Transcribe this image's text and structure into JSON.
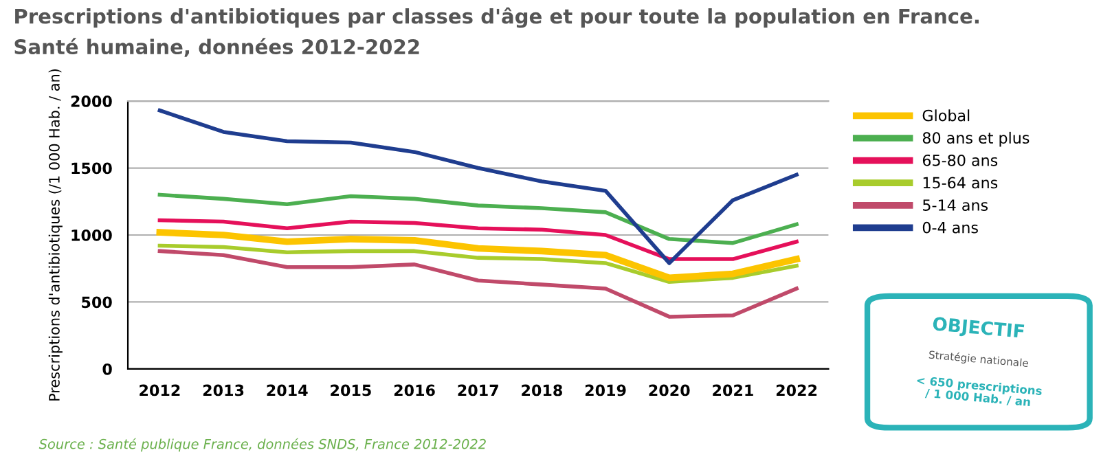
{
  "chart_data": {
    "type": "line",
    "title": "Prescriptions d'antibiotiques par classes d'âge et pour toute la population en France.",
    "subtitle": "Santé humaine, données 2012-2022",
    "ylabel": "Prescriptions d'antibiotiques (/1 000 Hab. / an)",
    "categories": [
      "2012",
      "2013",
      "2014",
      "2015",
      "2016",
      "2017",
      "2018",
      "2019",
      "2020",
      "2021",
      "2022"
    ],
    "series": [
      {
        "name": "Global",
        "color": "#fcc400",
        "values": [
          1020,
          1000,
          950,
          970,
          960,
          900,
          880,
          850,
          680,
          710,
          820
        ]
      },
      {
        "name": "80 ans et plus",
        "color": "#4caf50",
        "values": [
          1300,
          1270,
          1230,
          1290,
          1270,
          1220,
          1200,
          1170,
          970,
          940,
          1080
        ]
      },
      {
        "name": "65-80 ans",
        "color": "#e5105a",
        "values": [
          1110,
          1100,
          1050,
          1100,
          1090,
          1050,
          1040,
          1000,
          820,
          820,
          950
        ]
      },
      {
        "name": "15-64 ans",
        "color": "#a8cc2c",
        "values": [
          920,
          910,
          870,
          880,
          880,
          830,
          820,
          790,
          650,
          680,
          770
        ]
      },
      {
        "name": "5-14 ans",
        "color": "#c04a6a",
        "values": [
          880,
          850,
          760,
          760,
          780,
          660,
          630,
          600,
          390,
          400,
          600
        ]
      },
      {
        "name": "0-4 ans",
        "color": "#1f3d8f",
        "values": [
          1930,
          1770,
          1700,
          1690,
          1620,
          1500,
          1400,
          1330,
          790,
          1260,
          1450
        ]
      }
    ],
    "ylim": [
      0,
      2000
    ],
    "yticks": [
      0,
      500,
      1000,
      1500,
      2000
    ],
    "grid": "y",
    "legend": "right",
    "marker": "none",
    "line_style": "solid",
    "annotations": [
      "OBJECTIF",
      "Stratégie nationale",
      "< 650 prescriptions / 1 000 Hab. / an",
      "Source : Santé publique France, données SNDS, France 2012-2022"
    ]
  }
}
